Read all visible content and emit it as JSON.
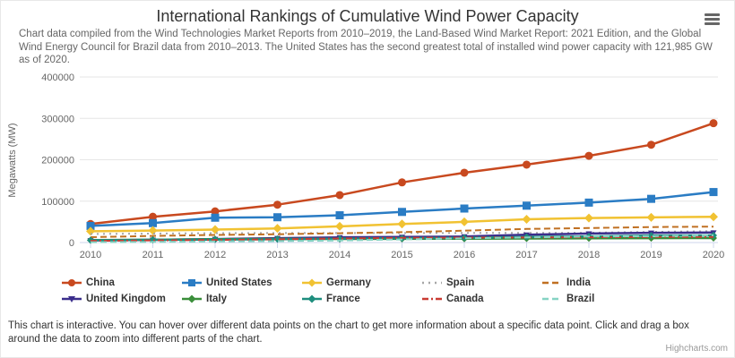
{
  "header": {
    "menu_icon": "hamburger-icon"
  },
  "chart_data": {
    "type": "line",
    "title": "International Rankings of Cumulative Wind Power Capacity",
    "subtitle": "Chart data compiled from the Wind Technologies Market Reports from 2010–2019, the Land-Based Wind Market Report: 2021 Edition, and the Global Wind Energy Council for Brazil data from 2010–2013. The United States has the second greatest total of installed wind power capacity with 121,985 GW as of 2020.",
    "xlabel": "",
    "ylabel": "Megawatts (MW)",
    "x": [
      2010,
      2011,
      2012,
      2013,
      2014,
      2015,
      2016,
      2017,
      2018,
      2019,
      2020
    ],
    "ylim": [
      0,
      400000
    ],
    "ytick_step": 100000,
    "ytick_labels": [
      "0",
      "100000",
      "200000",
      "300000",
      "400000"
    ],
    "grid": true,
    "legend_position": "bottom",
    "series": [
      {
        "name": "China",
        "color": "#c8491f",
        "dash": "solid",
        "marker": "circle",
        "values": [
          44733,
          62364,
          75324,
          91413,
          114609,
          145362,
          168732,
          188232,
          209533,
          236320,
          288320
        ]
      },
      {
        "name": "United States",
        "color": "#2a7cc4",
        "dash": "solid",
        "marker": "square",
        "values": [
          40180,
          46919,
          60007,
          61110,
          65877,
          73991,
          82143,
          89077,
          96487,
          105583,
          121985
        ]
      },
      {
        "name": "Germany",
        "color": "#f1c232",
        "dash": "solid",
        "marker": "diamond",
        "values": [
          27191,
          29075,
          31270,
          34250,
          39165,
          44941,
          50019,
          56190,
          59311,
          60822,
          62184
        ]
      },
      {
        "name": "Spain",
        "color": "#a6a6a6",
        "dash": "dot",
        "marker": "none",
        "values": [
          20676,
          21673,
          22796,
          22959,
          22987,
          23025,
          23075,
          23170,
          23494,
          25808,
          27446
        ]
      },
      {
        "name": "India",
        "color": "#c07022",
        "dash": "dash",
        "marker": "none",
        "values": [
          13065,
          16084,
          18421,
          20150,
          22465,
          25088,
          28700,
          32848,
          35129,
          37506,
          38559
        ]
      },
      {
        "name": "United Kingdom",
        "color": "#3b2e8c",
        "dash": "solid",
        "marker": "triangle-down",
        "values": [
          5204,
          6540,
          8445,
          10531,
          12440,
          13603,
          14543,
          18872,
          21736,
          23515,
          24167
        ]
      },
      {
        "name": "Italy",
        "color": "#3a8e3a",
        "dash": "solid",
        "marker": "diamond",
        "values": [
          5797,
          6737,
          8102,
          8542,
          8683,
          8958,
          9257,
          9737,
          10230,
          10512,
          10839
        ]
      },
      {
        "name": "France",
        "color": "#1e8e7e",
        "dash": "solid",
        "marker": "diamond",
        "values": [
          5660,
          6800,
          7196,
          8243,
          9285,
          10358,
          11566,
          13497,
          14898,
          16646,
          17382
        ]
      },
      {
        "name": "Canada",
        "color": "#c93b32",
        "dash": "dashdot",
        "marker": "none",
        "values": [
          4008,
          5265,
          6201,
          7823,
          9694,
          11205,
          11898,
          12239,
          12816,
          13413,
          13577
        ]
      },
      {
        "name": "Brazil",
        "color": "#86d3c3",
        "dash": "dash",
        "marker": "none",
        "values": [
          927,
          1426,
          2508,
          3466,
          4888,
          7633,
          10124,
          12294,
          14707,
          15364,
          17750
        ]
      }
    ],
    "colors": {
      "grid_line": "#e6e6e6",
      "axis_line": "#ccd6eb",
      "tick_label": "#666666",
      "axis_title": "#666666",
      "title_text": "#333333",
      "subtitle_text": "#666666",
      "legend_text": "#333333"
    }
  },
  "footer": {
    "note": "This chart is interactive. You can hover over different data points on the chart to get more information about a specific data point. Click and drag a box around the data to zoom into different parts of the chart.",
    "credits": "Highcharts.com"
  }
}
